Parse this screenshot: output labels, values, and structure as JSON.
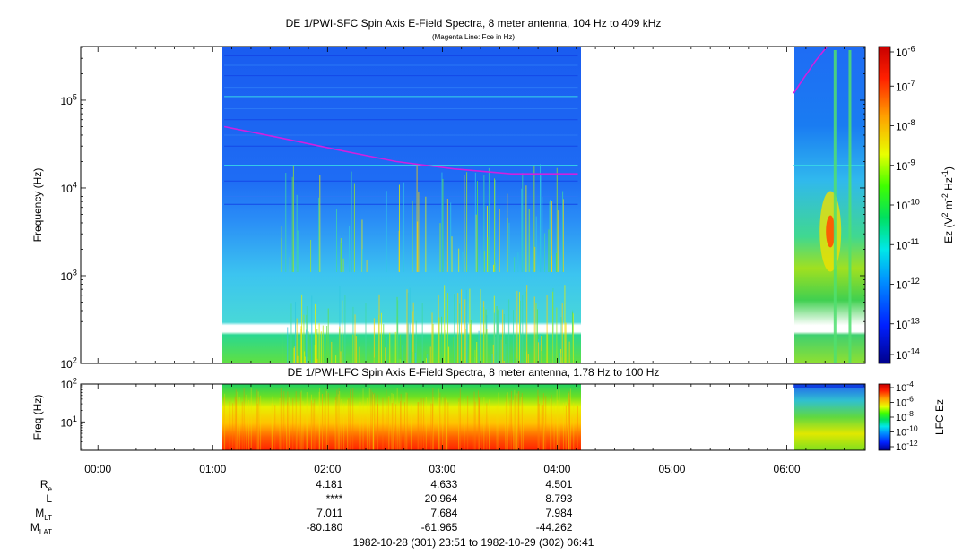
{
  "panels": {
    "sfc": {
      "title": "DE 1/PWI-SFC  Spin Axis E-Field Spectra, 8 meter antenna, 104 Hz to 409 kHz",
      "subtitle": "(Magenta Line: Fce in Hz)",
      "ylabel": "Frequency (Hz)",
      "colorbar_label": "Ez (V2 m-2 Hz-1)"
    },
    "lfc": {
      "title": "DE 1/PWI-LFC  Spin Axis E-Field Spectra, 8 meter antenna, 1.78 Hz to 100 Hz",
      "ylabel": "Freq (Hz)",
      "colorbar_label": "LFC Ez"
    }
  },
  "ephemeris": {
    "row_labels": [
      {
        "base": "R",
        "sub": "e"
      },
      {
        "base": "L",
        "sub": ""
      },
      {
        "base": "M",
        "sub": "LT"
      },
      {
        "base": "M",
        "sub": "LAT"
      }
    ],
    "rows": [
      [
        "4.181",
        "4.633",
        "4.501"
      ],
      [
        "****",
        "20.964",
        "8.793"
      ],
      [
        "7.011",
        "7.684",
        "7.984"
      ],
      [
        "-80.180",
        "-61.965",
        "-44.262"
      ]
    ],
    "column_times": [
      "02:00",
      "03:00",
      "04:00"
    ]
  },
  "time_range_label": "1982-10-28 (301) 23:51 to 1982-10-29 (302) 06:41",
  "chart_data": [
    {
      "type": "heatmap",
      "title": "DE 1/PWI-SFC  Spin Axis E-Field Spectra, 8 meter antenna, 104 Hz to 409 kHz",
      "subtitle": "(Magenta Line: Fce in Hz)",
      "ylabel": "Frequency (Hz)",
      "yscale": "log",
      "ylim": [
        100,
        409000
      ],
      "y_ticks": [
        100,
        1000,
        10000,
        100000
      ],
      "xlim_hours": [
        -0.15,
        6.683
      ],
      "x_ticks": [
        "00:00",
        "01:00",
        "02:00",
        "03:00",
        "04:00",
        "05:00",
        "06:00"
      ],
      "data_intervals_hours": [
        [
          1.1,
          4.18
        ],
        [
          6.06,
          6.683
        ]
      ],
      "colorbar": {
        "label": "Ez (V2 m-2 Hz-1)",
        "scale": "log",
        "range": [
          1e-14,
          1e-06
        ],
        "ticks": [
          "10-6",
          "10-7",
          "10-8",
          "10-9",
          "10-10",
          "10-11",
          "10-12",
          "10-13",
          "10-14"
        ]
      },
      "fce_line": {
        "name": "Fce in Hz",
        "color": "#d020e0",
        "segments": [
          [
            [
              1.1,
              50000
            ],
            [
              1.6,
              37000
            ],
            [
              2.1,
              27000
            ],
            [
              2.6,
              20000
            ],
            [
              3.1,
              16500
            ],
            [
              3.6,
              14500
            ],
            [
              4.18,
              14500
            ]
          ],
          [
            [
              6.06,
              120000
            ],
            [
              6.15,
              180000
            ],
            [
              6.25,
              280000
            ],
            [
              6.35,
              409000
            ]
          ]
        ]
      }
    },
    {
      "type": "heatmap",
      "title": "DE 1/PWI-LFC  Spin Axis E-Field Spectra, 8 meter antenna, 1.78 Hz to 100 Hz",
      "ylabel": "Freq (Hz)",
      "yscale": "log",
      "ylim": [
        1.78,
        100
      ],
      "y_ticks": [
        10,
        100
      ],
      "data_intervals_hours": [
        [
          1.1,
          4.18
        ],
        [
          6.06,
          6.683
        ]
      ],
      "colorbar": {
        "label": "LFC Ez",
        "scale": "log",
        "range": [
          1e-12,
          0.0001
        ],
        "ticks": [
          "10-4",
          "10-6",
          "10-8",
          "10-10",
          "10-12"
        ]
      }
    }
  ],
  "colors": {
    "fce_line": "#d020e0",
    "frame": "#000000"
  }
}
